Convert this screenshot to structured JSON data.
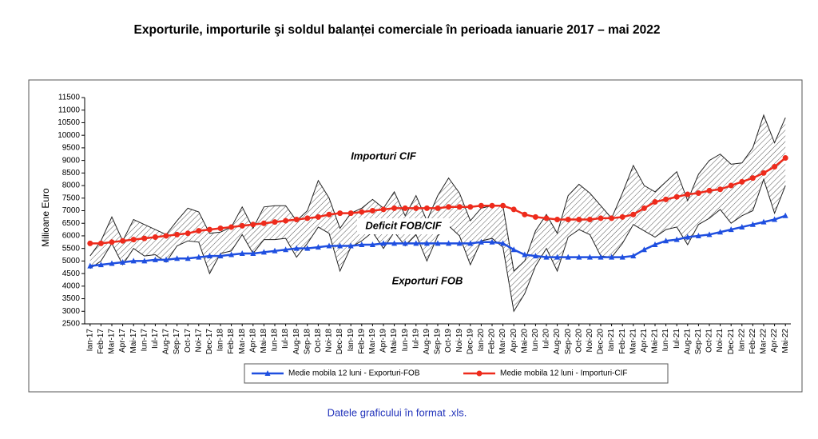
{
  "chart_data": {
    "type": "line",
    "title": "Exporturile, importurile şi soldul balanței comerciale în perioada ianuarie 2017 – mai 2022",
    "y_label": "Milioane Euro",
    "categories": [
      "Ian-17",
      "Feb-17",
      "Mar-17",
      "Apr-17",
      "Mai-17",
      "Iun-17",
      "Iul-17",
      "Aug-17",
      "Sep-17",
      "Oct-17",
      "Noi-17",
      "Dec-17",
      "Ian-18",
      "Feb-18",
      "Mar-18",
      "Apr-18",
      "Mai-18",
      "Iun-18",
      "Iul-18",
      "Aug-18",
      "Sep-18",
      "Oct-18",
      "Noi-18",
      "Dec-18",
      "Ian-19",
      "Feb-19",
      "Mar-19",
      "Apr-19",
      "Mai-19",
      "Iun-19",
      "Iul-19",
      "Aug-19",
      "Sep-19",
      "Oct-19",
      "Noi-19",
      "Dec-19",
      "Ian-20",
      "Feb-20",
      "Mar-20",
      "Apr-20",
      "Mai-20",
      "Iun-20",
      "Iul-20",
      "Aug-20",
      "Sep-20",
      "Oct-20",
      "Noi-20",
      "Dec-20",
      "Ian-21",
      "Feb-21",
      "Mar-21",
      "Apr-21",
      "Mai-21",
      "Iun-21",
      "Iul-21",
      "Aug-21",
      "Sep-21",
      "Oct-21",
      "Noi-21",
      "Dec-21",
      "Ian-22",
      "Feb-22",
      "Mar-22",
      "Apr-22",
      "Mai-22"
    ],
    "series": [
      {
        "name": "Medie mobila 12 luni - Exporturi-FOB",
        "color": "#1f4fe0",
        "marker": "triangle",
        "values": [
          4800,
          4850,
          4900,
          4950,
          5000,
          5000,
          5050,
          5050,
          5100,
          5100,
          5150,
          5200,
          5200,
          5250,
          5300,
          5300,
          5350,
          5400,
          5450,
          5500,
          5500,
          5550,
          5600,
          5600,
          5600,
          5650,
          5650,
          5700,
          5700,
          5700,
          5700,
          5700,
          5700,
          5700,
          5700,
          5700,
          5750,
          5750,
          5700,
          5450,
          5250,
          5200,
          5150,
          5150,
          5150,
          5150,
          5150,
          5150,
          5150,
          5150,
          5200,
          5450,
          5650,
          5800,
          5850,
          5950,
          6000,
          6050,
          6150,
          6250,
          6350,
          6450,
          6550,
          6650,
          6800
        ]
      },
      {
        "name": "Medie mobila 12 luni - Importuri-CIF",
        "color": "#ee2b1c",
        "marker": "circle",
        "values": [
          5700,
          5700,
          5750,
          5800,
          5850,
          5900,
          5950,
          6000,
          6050,
          6100,
          6200,
          6250,
          6300,
          6350,
          6400,
          6450,
          6500,
          6550,
          6600,
          6650,
          6700,
          6750,
          6850,
          6900,
          6900,
          6950,
          7000,
          7050,
          7100,
          7100,
          7100,
          7100,
          7100,
          7150,
          7150,
          7150,
          7200,
          7200,
          7200,
          7050,
          6850,
          6750,
          6700,
          6650,
          6650,
          6650,
          6650,
          6700,
          6700,
          6750,
          6850,
          7100,
          7350,
          7450,
          7550,
          7650,
          7700,
          7800,
          7850,
          8000,
          8150,
          8300,
          8500,
          8750,
          9100
        ]
      }
    ],
    "imports_cif": [
      5200,
      5800,
      6750,
      5800,
      6650,
      6450,
      6250,
      6050,
      6600,
      7100,
      6950,
      6100,
      6150,
      6350,
      7150,
      6300,
      7150,
      7200,
      7200,
      6600,
      7000,
      8200,
      7500,
      6300,
      6900,
      7100,
      7450,
      7100,
      7750,
      6800,
      7600,
      6600,
      7600,
      8300,
      7700,
      6600,
      7100,
      7200,
      7200,
      4600,
      5000,
      6200,
      6850,
      6100,
      7600,
      8050,
      7700,
      7200,
      6700,
      7700,
      8800,
      8000,
      7750,
      8150,
      8550,
      7400,
      8450,
      9000,
      9250,
      8850,
      8900,
      9500,
      10800,
      9700,
      10700
    ],
    "exports_fob": [
      4700,
      5000,
      5700,
      4850,
      5500,
      5200,
      5250,
      4950,
      5600,
      5800,
      5750,
      4500,
      5300,
      5400,
      6050,
      5300,
      5850,
      5850,
      5900,
      5150,
      5700,
      6350,
      6100,
      4600,
      5550,
      5800,
      6150,
      5500,
      6150,
      5600,
      6050,
      5000,
      6000,
      6400,
      6000,
      4850,
      5800,
      5900,
      5550,
      3000,
      3700,
      4800,
      5500,
      4600,
      5950,
      6250,
      6050,
      5200,
      5150,
      5700,
      6450,
      6200,
      5950,
      6250,
      6350,
      5650,
      6450,
      6700,
      7050,
      6500,
      6800,
      7000,
      8250,
      6900,
      8000
    ],
    "annotations": [
      "Importuri CIF",
      "Deficit FOB/CIF",
      "Exporturi FOB"
    ],
    "ylim": [
      2500,
      11500
    ],
    "yticks": [
      2500,
      3000,
      3500,
      4000,
      4500,
      5000,
      5500,
      6000,
      6500,
      7000,
      7500,
      8000,
      8500,
      9000,
      9500,
      10000,
      10500,
      11000,
      11500
    ],
    "grid": false
  },
  "footer": "Datele graficului în format .xls."
}
